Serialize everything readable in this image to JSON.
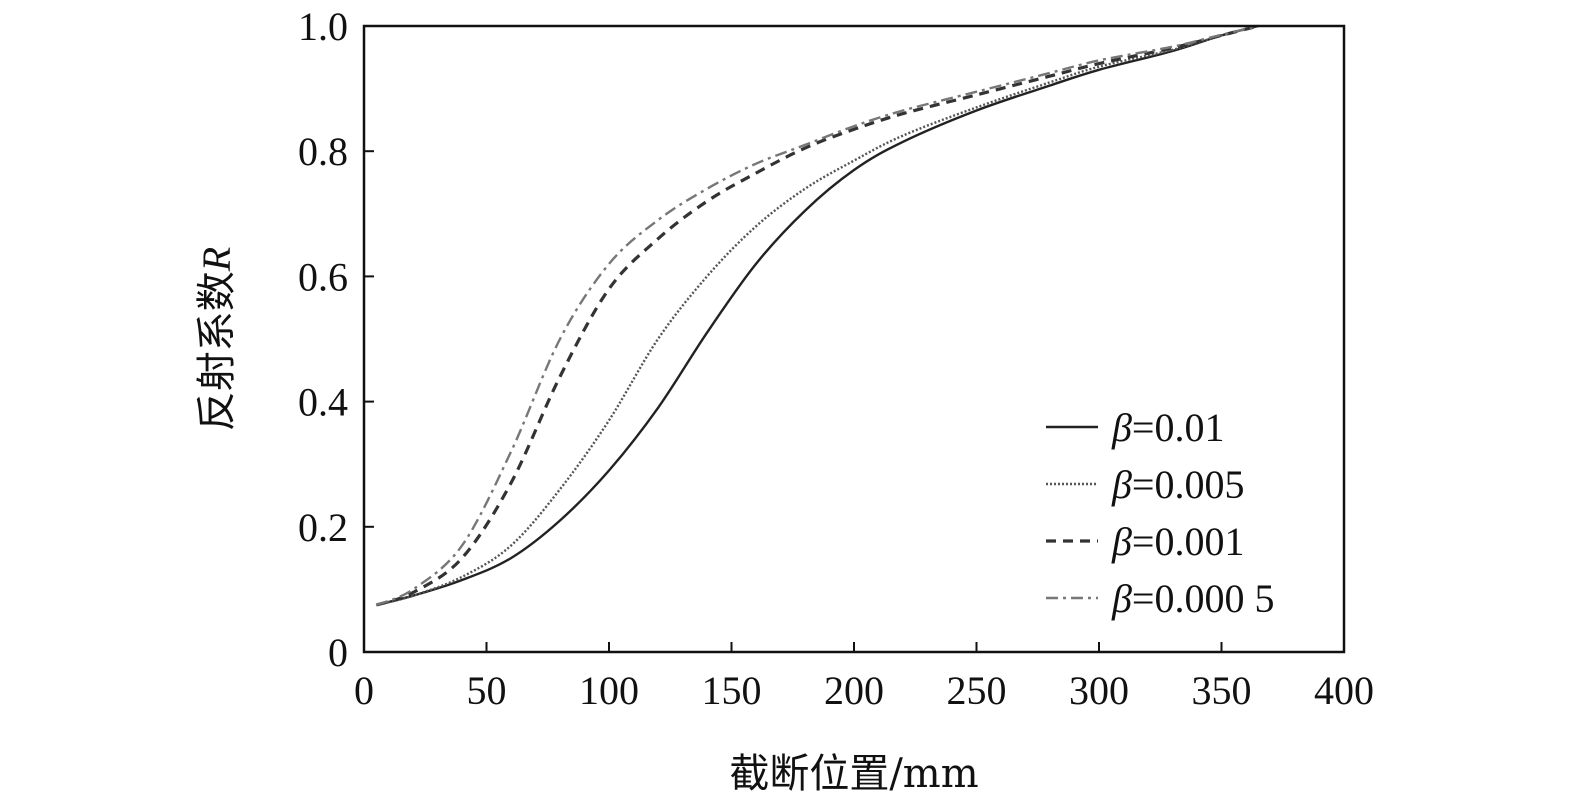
{
  "chart_data": {
    "type": "line",
    "xlabel": "截断位置/mm",
    "ylabel": "反射系数R",
    "ylabel_main": "反射系数",
    "ylabel_var": "R",
    "xlim": [
      0,
      400
    ],
    "ylim": [
      0,
      1.0
    ],
    "xticks": [
      0,
      50,
      100,
      150,
      200,
      250,
      300,
      350,
      400
    ],
    "xtick_labels": [
      "0",
      "50",
      "100",
      "150",
      "200",
      "250",
      "300",
      "350",
      "400"
    ],
    "yticks": [
      0,
      0.2,
      0.4,
      0.6,
      0.8,
      1.0
    ],
    "ytick_labels": [
      "0",
      "0.2",
      "0.4",
      "0.6",
      "0.8",
      "1.0"
    ],
    "grid": false,
    "legend_position": "bottom-right",
    "series": [
      {
        "name": "β=0.01",
        "name_symbol": "β",
        "name_value": "=0.01",
        "style": "solid",
        "color": "#222222",
        "x": [
          5,
          20,
          40,
          60,
          80,
          100,
          120,
          140,
          160,
          180,
          200,
          220,
          250,
          280,
          300,
          330,
          350,
          365
        ],
        "y": [
          0.075,
          0.09,
          0.115,
          0.15,
          0.21,
          0.29,
          0.39,
          0.51,
          0.62,
          0.705,
          0.77,
          0.815,
          0.865,
          0.905,
          0.93,
          0.96,
          0.985,
          1.0
        ]
      },
      {
        "name": "β=0.005",
        "name_symbol": "β",
        "name_value": "=0.005",
        "style": "dotted",
        "color": "#555555",
        "x": [
          5,
          20,
          40,
          60,
          80,
          100,
          120,
          140,
          160,
          180,
          200,
          220,
          250,
          280,
          300,
          330,
          350,
          365
        ],
        "y": [
          0.075,
          0.09,
          0.12,
          0.17,
          0.26,
          0.37,
          0.5,
          0.6,
          0.68,
          0.74,
          0.785,
          0.825,
          0.87,
          0.91,
          0.935,
          0.962,
          0.985,
          1.0
        ]
      },
      {
        "name": "β=0.001",
        "name_symbol": "β",
        "name_value": "=0.001",
        "style": "dashed",
        "color": "#333333",
        "x": [
          5,
          20,
          40,
          60,
          80,
          100,
          120,
          140,
          160,
          180,
          200,
          220,
          250,
          280,
          300,
          330,
          350,
          365
        ],
        "y": [
          0.075,
          0.095,
          0.15,
          0.27,
          0.44,
          0.58,
          0.66,
          0.72,
          0.765,
          0.805,
          0.835,
          0.86,
          0.89,
          0.92,
          0.94,
          0.965,
          0.985,
          1.0
        ]
      },
      {
        "name": "β=0.000 5",
        "name_symbol": "β",
        "name_value": "=0.000 5",
        "style": "dashdot",
        "color": "#777777",
        "x": [
          5,
          20,
          40,
          60,
          80,
          100,
          120,
          140,
          160,
          180,
          200,
          220,
          250,
          280,
          300,
          330,
          350,
          365
        ],
        "y": [
          0.075,
          0.1,
          0.17,
          0.32,
          0.5,
          0.62,
          0.69,
          0.74,
          0.78,
          0.81,
          0.84,
          0.865,
          0.895,
          0.925,
          0.945,
          0.967,
          0.986,
          1.0
        ]
      }
    ]
  }
}
